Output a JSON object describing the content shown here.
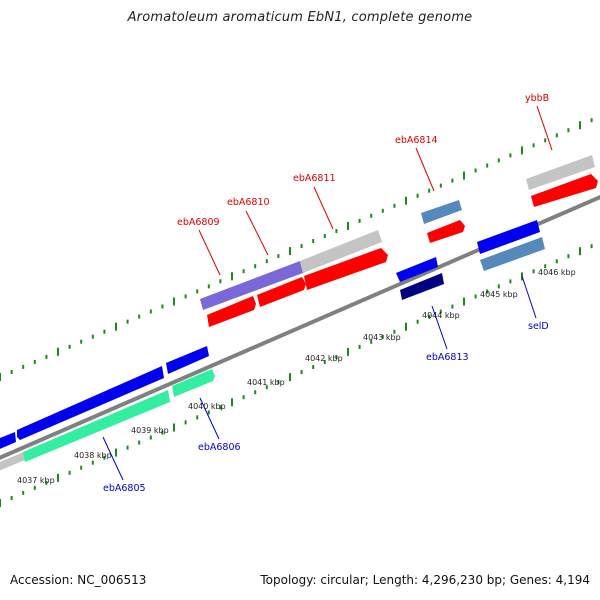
{
  "title": "Aromatoleum aromaticum EbN1, complete genome",
  "footer": {
    "accession": "Accession: NC_006513",
    "summary": "Topology: circular; Length: 4,296,230 bp; Genes: 4,194"
  },
  "colors": {
    "forward_label": "#e00000",
    "reverse_label": "#0000cc",
    "backbone": "#808080",
    "tick": "#1a8a1a",
    "cds_forward": "#ff0000",
    "cds_reverse": "#0000ff",
    "grey_feature": "#c4c4c4",
    "purple_feature": "#7a68d8",
    "teal_feature": "#33eea0",
    "steel_feature": "#5588bb",
    "navy_feature": "#000080"
  },
  "kbp_labels": [
    "4037 kbp",
    "4038 kbp",
    "4039 kbp",
    "4040 kbp",
    "4041 kbp",
    "4042 kbp",
    "4043 kbp",
    "4044 kbp",
    "4045 kbp",
    "4046 kbp"
  ],
  "gene_labels": {
    "forward": [
      "ebA6809",
      "ebA6810",
      "ebA6811",
      "ebA6814",
      "ybbB"
    ],
    "reverse": [
      "ebA6805",
      "ebA6806",
      "ebA6813",
      "selD"
    ]
  }
}
